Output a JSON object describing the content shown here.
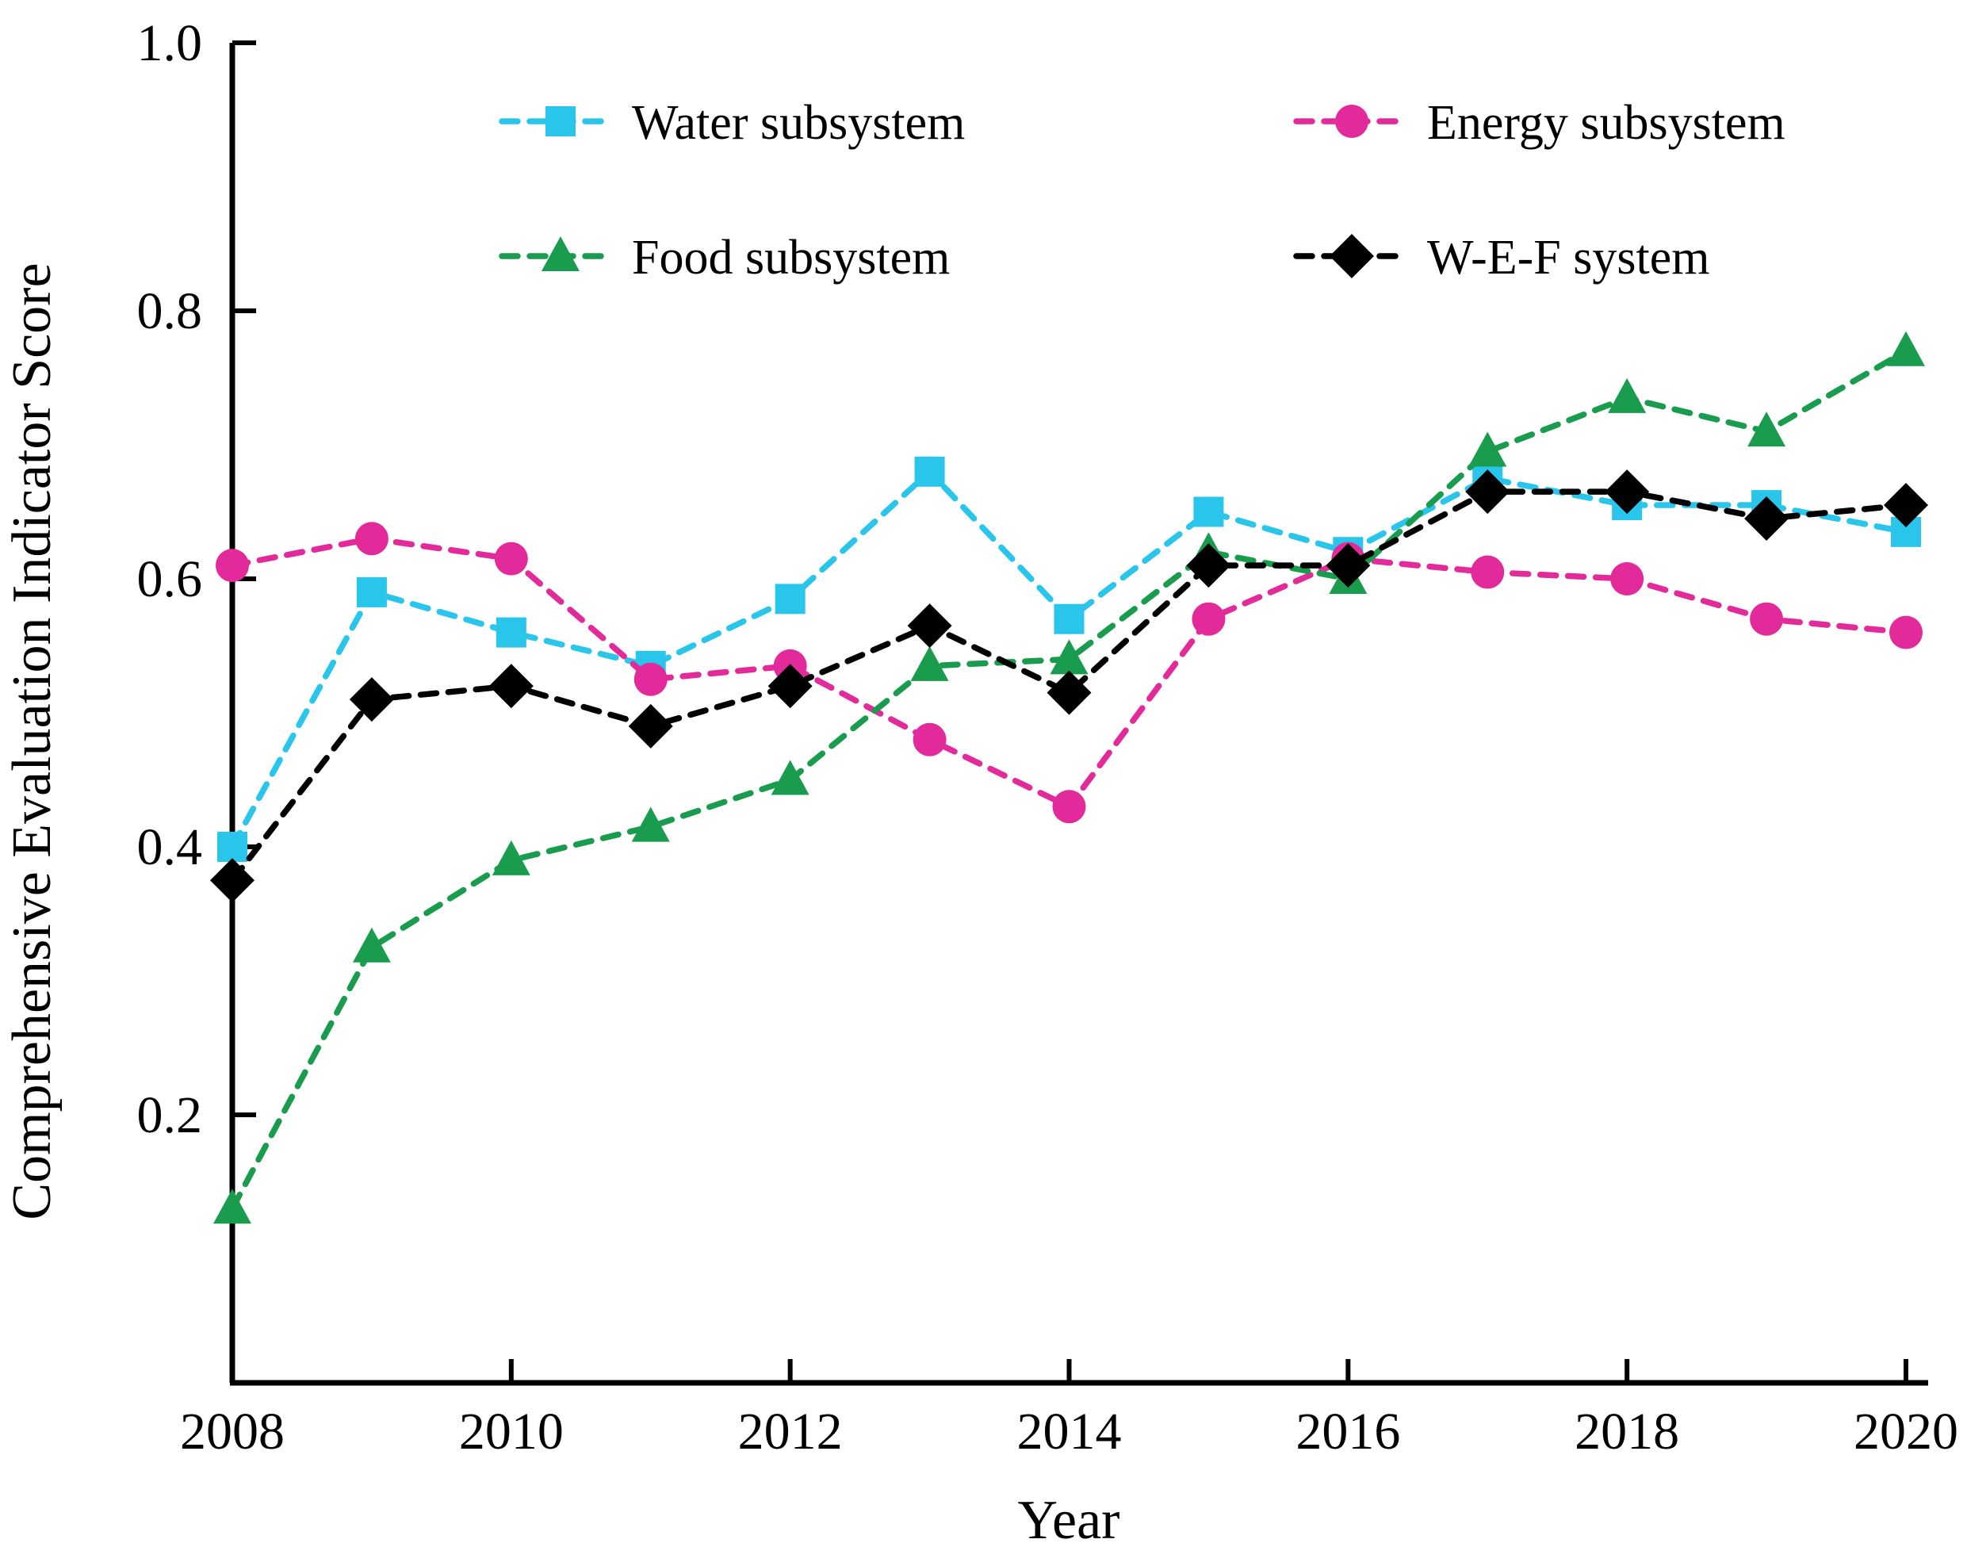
{
  "figure": {
    "background": "#FFFFFF"
  },
  "chart_data": {
    "type": "line",
    "title": "",
    "xlabel": "Year",
    "ylabel": "Comprehensive Evaluation Indicator Score",
    "line_style": "dashed",
    "grid": false,
    "legend_position": "top-inside-two-columns",
    "xlim": [
      2008,
      2020
    ],
    "ylim": [
      0,
      1.0
    ],
    "x": [
      2008,
      2009,
      2010,
      2011,
      2012,
      2013,
      2014,
      2015,
      2016,
      2017,
      2018,
      2019,
      2020
    ],
    "x_tick_labels": [
      "2008",
      "2010",
      "2012",
      "2014",
      "2016",
      "2018",
      "2020"
    ],
    "x_tick_values": [
      2008,
      2010,
      2012,
      2014,
      2016,
      2018,
      2020
    ],
    "y_tick_labels": [
      "0.2",
      "0.4",
      "0.6",
      "0.8",
      "1.0"
    ],
    "y_tick_values": [
      0.2,
      0.4,
      0.6,
      0.8,
      1.0
    ],
    "series": [
      {
        "name": "Water subsystem",
        "marker": "square",
        "color": "#29C5EA",
        "values": [
          0.4,
          0.59,
          0.56,
          0.535,
          0.585,
          0.68,
          0.57,
          0.65,
          0.62,
          0.675,
          0.655,
          0.655,
          0.635
        ]
      },
      {
        "name": "Energy subsystem",
        "marker": "circle",
        "color": "#E22A9B",
        "values": [
          0.61,
          0.63,
          0.615,
          0.525,
          0.535,
          0.48,
          0.43,
          0.57,
          0.615,
          0.605,
          0.6,
          0.57,
          0.56
        ]
      },
      {
        "name": "Food subsystem",
        "marker": "triangle",
        "color": "#1A9C4F",
        "values": [
          0.13,
          0.325,
          0.39,
          0.415,
          0.45,
          0.535,
          0.54,
          0.62,
          0.6,
          0.695,
          0.735,
          0.71,
          0.77
        ]
      },
      {
        "name": "W-E-F system",
        "marker": "diamond",
        "color": "#000000",
        "values": [
          0.375,
          0.51,
          0.52,
          0.49,
          0.52,
          0.565,
          0.515,
          0.61,
          0.61,
          0.665,
          0.665,
          0.645,
          0.655
        ]
      }
    ]
  }
}
